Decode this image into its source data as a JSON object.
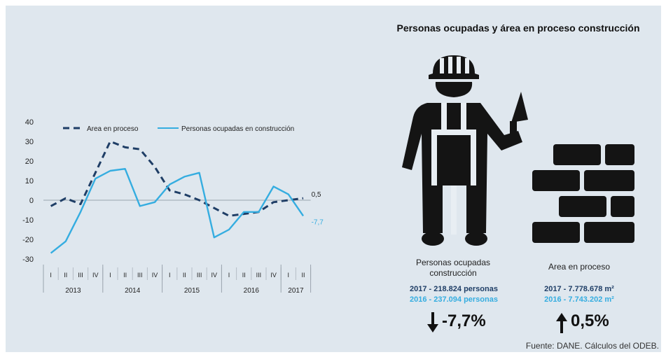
{
  "infographic": {
    "title": "Personas ocupadas y área en proceso construcción",
    "workers": {
      "label": "Personas ocupadas construcción",
      "line_2017": "2017 - 218.824 personas",
      "line_2016": "2016 - 237.094 personas",
      "change": "-7,7%",
      "icon": "arrow-down-icon"
    },
    "area": {
      "label": "Area en proceso",
      "line_2017": "2017 - 7.778.678 m²",
      "line_2016": "2016 - 7.743.202 m²",
      "change": "0,5%",
      "icon": "arrow-up-icon"
    },
    "source": "Fuente: DANE. Cálculos del ODEB."
  },
  "colors": {
    "area_series": "#1f3e66",
    "workers_series": "#35ade0",
    "dark_text": "#1f3e66",
    "light_text": "#35ade0",
    "icon": "#141414"
  },
  "chart_data": {
    "type": "line",
    "categories": [
      "I",
      "II",
      "III",
      "IV",
      "I",
      "II",
      "III",
      "IV",
      "I",
      "II",
      "III",
      "IV",
      "I",
      "II",
      "III",
      "IV",
      "I",
      "II"
    ],
    "years": [
      {
        "label": "2013",
        "span": 4
      },
      {
        "label": "2014",
        "span": 4
      },
      {
        "label": "2015",
        "span": 4
      },
      {
        "label": "2016",
        "span": 4
      },
      {
        "label": "2017",
        "span": 2
      }
    ],
    "ylim": [
      -30,
      40
    ],
    "yticks": [
      -30,
      -20,
      -10,
      0,
      10,
      20,
      30,
      40
    ],
    "legend_position": "top",
    "series": [
      {
        "name": "Area en proceso",
        "style": "dashed",
        "values": [
          -3,
          1,
          -2,
          14,
          30,
          27,
          26,
          17,
          5,
          3,
          0,
          -4,
          -8,
          -7,
          -6,
          -1,
          0,
          1
        ],
        "end_label": "0,5"
      },
      {
        "name": "Personas ocupadas en construcción",
        "style": "solid",
        "values": [
          -27,
          -21,
          -6,
          11,
          15,
          16,
          -3,
          -1,
          8,
          12,
          14,
          -19,
          -15,
          -6,
          -6,
          7,
          3,
          -8
        ],
        "end_label": "-7,7"
      }
    ]
  }
}
